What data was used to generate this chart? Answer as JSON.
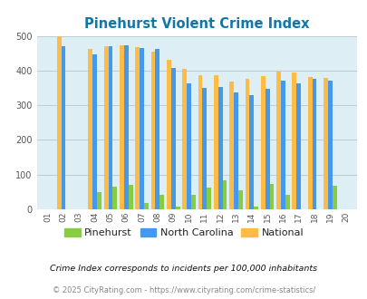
{
  "title": "Pinehurst Violent Crime Index",
  "years": [
    2001,
    2002,
    2003,
    2004,
    2005,
    2006,
    2007,
    2008,
    2009,
    2010,
    2011,
    2012,
    2013,
    2014,
    2015,
    2016,
    2017,
    2018,
    2019,
    2020
  ],
  "pinehurst": [
    0,
    0,
    0,
    50,
    65,
    70,
    18,
    43,
    9,
    43,
    63,
    83,
    55,
    9,
    73,
    43,
    0,
    0,
    68,
    0
  ],
  "north_carolina": [
    0,
    470,
    0,
    448,
    470,
    473,
    465,
    462,
    407,
    363,
    350,
    353,
    338,
    330,
    348,
    372,
    362,
    375,
    372,
    0
  ],
  "national": [
    0,
    498,
    0,
    463,
    469,
    474,
    467,
    455,
    432,
    405,
    387,
    387,
    368,
    376,
    383,
    397,
    394,
    381,
    379,
    0
  ],
  "bar_width": 0.28,
  "pinehurst_color": "#88cc44",
  "nc_color": "#4499ee",
  "national_color": "#ffbb44",
  "bg_color": "#ddeef5",
  "grid_color": "#bbccd8",
  "ylim": [
    0,
    500
  ],
  "yticks": [
    0,
    100,
    200,
    300,
    400,
    500
  ],
  "title_color": "#1177aa",
  "legend_labels": [
    "Pinehurst",
    "North Carolina",
    "National"
  ],
  "footnote1": "Crime Index corresponds to incidents per 100,000 inhabitants",
  "footnote2": "© 2025 CityRating.com - https://www.cityrating.com/crime-statistics/"
}
